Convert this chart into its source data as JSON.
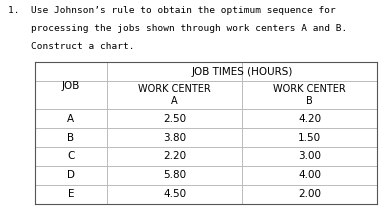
{
  "title_line1": "1.  Use Johnson’s rule to obtain the optimum sequence for",
  "title_line2": "    processing the jobs shown through work centers A and B.",
  "title_line3": "    Construct a chart.",
  "table_header_top": "JOB TIMES (HOURS)",
  "col0_header": "JOB",
  "col1_header": "WORK CENTER\nA",
  "col2_header": "WORK CENTER\nB",
  "jobs": [
    "A",
    "B",
    "C",
    "D",
    "E"
  ],
  "center_a": [
    2.5,
    3.8,
    2.2,
    5.8,
    4.5
  ],
  "center_b": [
    4.2,
    1.5,
    3.0,
    4.0,
    2.0
  ],
  "bg_color": "#ffffff",
  "text_color": "#000000",
  "table_line_color": "#bbbbbb",
  "title_fontsize": 6.8,
  "table_fontsize": 7.5
}
